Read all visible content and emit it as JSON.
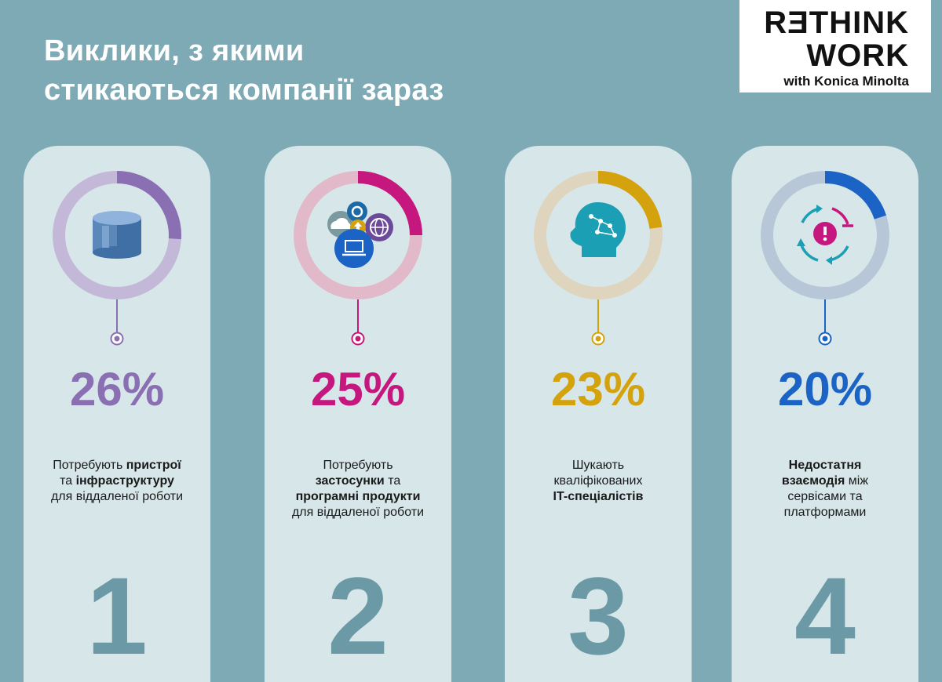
{
  "header": {
    "title_line1": "Виклики, з якими",
    "title_line2": "стикаються компанії зараз"
  },
  "logo": {
    "line1": "RƎTHINK",
    "line2": "WORK",
    "line3": "with Konica Minolta"
  },
  "chart_data": {
    "type": "pie",
    "title": "Виклики, з якими стикаються компанії зараз",
    "unit": "%",
    "items": [
      {
        "number": "1",
        "value": 26,
        "label": "26%",
        "color": "#8a6fb3",
        "track_color": "#c4b8d8",
        "icon": "storage-cylinder-icon",
        "desc": {
          "a": "Потребують ",
          "b": "пристрої",
          "c": "та ",
          "d": "інфраструктуру",
          "e": "для віддаленої роботи"
        }
      },
      {
        "number": "2",
        "value": 25,
        "label": "25%",
        "color": "#c6177e",
        "track_color": "#e2b9c9",
        "icon": "apps-cloud-globe-laptop-icon",
        "desc": {
          "a": "Потребують",
          "b": "застосунки",
          "c": " та",
          "d": "програмні продукти",
          "e": "для віддаленої роботи"
        }
      },
      {
        "number": "3",
        "value": 23,
        "label": "23%",
        "color": "#d4a20c",
        "track_color": "#dfd4bd",
        "icon": "ai-head-icon",
        "desc": {
          "a": "Шукають",
          "b": "кваліфікованих",
          "c": "IT-спеціалістів"
        }
      },
      {
        "number": "4",
        "value": 20,
        "label": "20%",
        "color": "#1b63c4",
        "track_color": "#b8c7d8",
        "icon": "cycle-alert-icon",
        "desc": {
          "a": "Недостатня",
          "b": "взаємодія",
          "c": " між",
          "d": "сервісами та",
          "e": "платформами"
        }
      }
    ]
  }
}
